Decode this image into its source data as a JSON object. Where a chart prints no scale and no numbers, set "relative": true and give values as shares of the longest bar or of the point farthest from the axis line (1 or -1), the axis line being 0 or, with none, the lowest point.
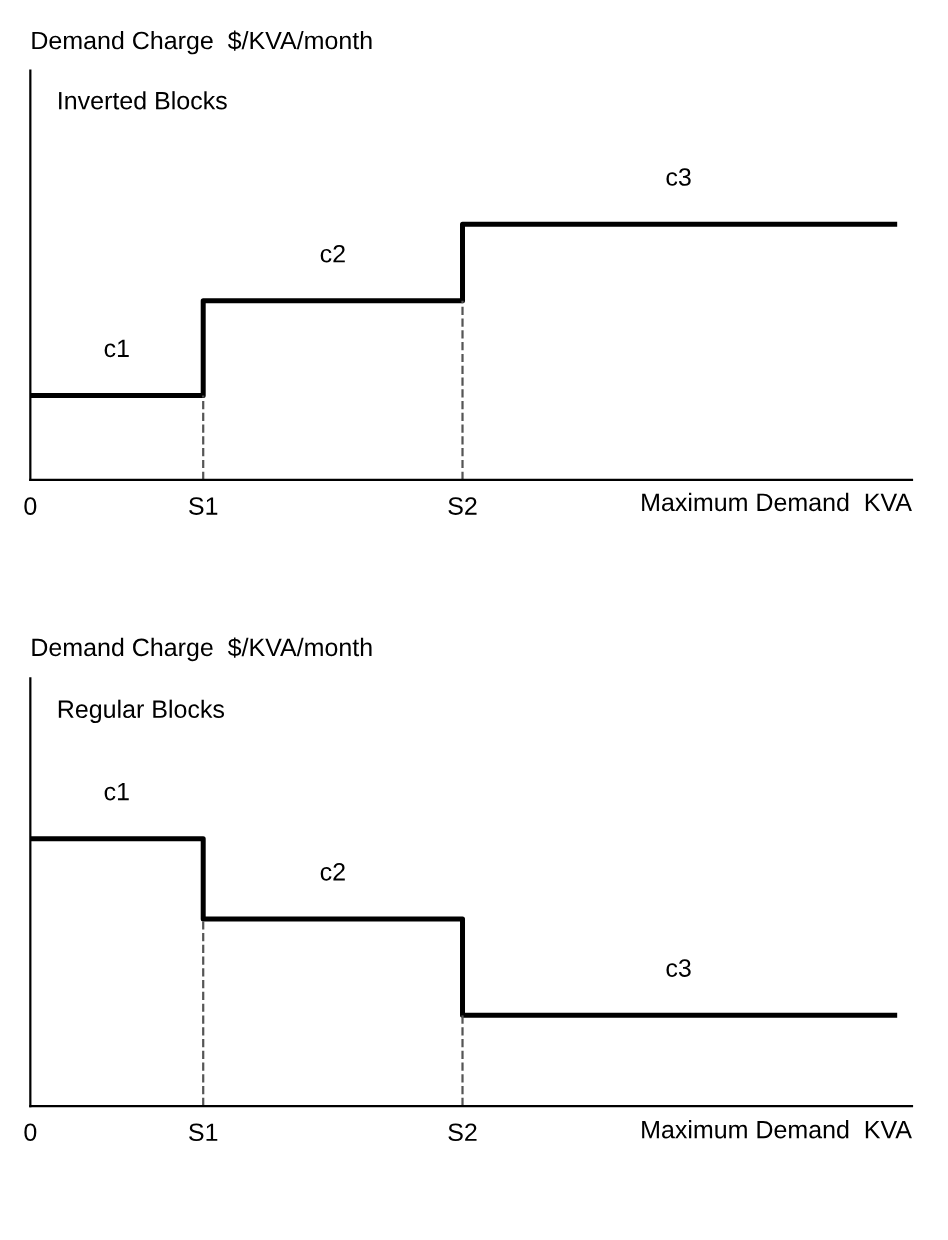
{
  "chart_data": [
    {
      "type": "step",
      "relative": true,
      "ylabel": "Demand Charge  $/KVA/month",
      "subtitle": "Inverted Blocks",
      "xlabel": "Maximum Demand  KVA",
      "categories": [
        "0",
        null,
        "S1",
        null,
        null,
        "S2",
        null,
        null,
        null,
        null,
        null
      ],
      "series": [
        {
          "color": "#000000",
          "values": [
            0.33,
            0.33,
            0.7,
            0.7,
            0.7,
            1,
            1,
            1,
            1,
            1,
            1
          ]
        }
      ],
      "ref_lines": [
        {
          "axis": "x",
          "value": "S1",
          "line_style": "dashed",
          "color": "#555555"
        },
        {
          "axis": "x",
          "value": "S2",
          "line_style": "dashed",
          "color": "#555555"
        }
      ],
      "annotations": [
        "c1",
        "c2",
        "c3"
      ],
      "grid": false,
      "legend": false
    },
    {
      "type": "step",
      "relative": true,
      "ylabel": "Demand Charge  $/KVA/month",
      "subtitle": "Regular Blocks",
      "xlabel": "Maximum Demand  KVA",
      "categories": [
        "0",
        null,
        "S1",
        null,
        null,
        "S2",
        null,
        null,
        null,
        null,
        null
      ],
      "series": [
        {
          "color": "#000000",
          "values": [
            1,
            1,
            0.7,
            0.7,
            0.7,
            0.34,
            0.34,
            0.34,
            0.34,
            0.34,
            0.34
          ]
        }
      ],
      "ref_lines": [
        {
          "axis": "x",
          "value": "S1",
          "line_style": "dashed",
          "color": "#555555"
        },
        {
          "axis": "x",
          "value": "S2",
          "line_style": "dashed",
          "color": "#555555"
        }
      ],
      "annotations": [
        "c1",
        "c2",
        "c3"
      ],
      "grid": false,
      "legend": false
    }
  ]
}
